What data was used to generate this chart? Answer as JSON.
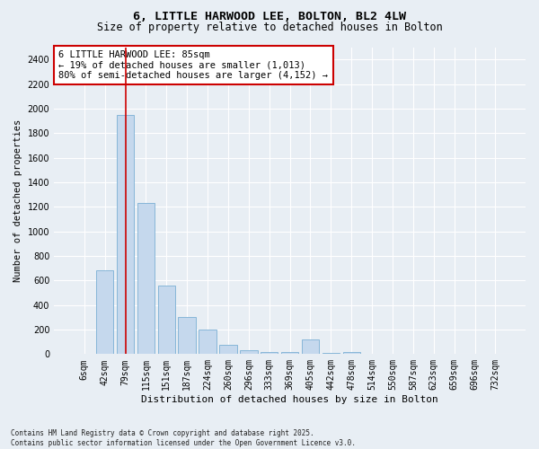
{
  "title1": "6, LITTLE HARWOOD LEE, BOLTON, BL2 4LW",
  "title2": "Size of property relative to detached houses in Bolton",
  "xlabel": "Distribution of detached houses by size in Bolton",
  "ylabel": "Number of detached properties",
  "categories": [
    "6sqm",
    "42sqm",
    "79sqm",
    "115sqm",
    "151sqm",
    "187sqm",
    "224sqm",
    "260sqm",
    "296sqm",
    "333sqm",
    "369sqm",
    "405sqm",
    "442sqm",
    "478sqm",
    "514sqm",
    "550sqm",
    "587sqm",
    "623sqm",
    "659sqm",
    "696sqm",
    "732sqm"
  ],
  "values": [
    5,
    680,
    1950,
    1230,
    560,
    300,
    200,
    75,
    35,
    20,
    15,
    120,
    10,
    15,
    5,
    0,
    5,
    0,
    0,
    0,
    0
  ],
  "bar_color": "#c5d8ed",
  "bar_edge_color": "#7aafd4",
  "background_color": "#e8eef4",
  "grid_color": "#ffffff",
  "vline_x": 2.0,
  "vline_color": "#cc0000",
  "annotation_text": "6 LITTLE HARWOOD LEE: 85sqm\n← 19% of detached houses are smaller (1,013)\n80% of semi-detached houses are larger (4,152) →",
  "annotation_box_color": "#ffffff",
  "annotation_box_edge": "#cc0000",
  "ylim": [
    0,
    2500
  ],
  "yticks": [
    0,
    200,
    400,
    600,
    800,
    1000,
    1200,
    1400,
    1600,
    1800,
    2000,
    2200,
    2400
  ],
  "footer": "Contains HM Land Registry data © Crown copyright and database right 2025.\nContains public sector information licensed under the Open Government Licence v3.0.",
  "title1_fontsize": 9.5,
  "title2_fontsize": 8.5,
  "xlabel_fontsize": 8,
  "ylabel_fontsize": 7.5,
  "tick_fontsize": 7,
  "annotation_fontsize": 7.5,
  "footer_fontsize": 5.5
}
